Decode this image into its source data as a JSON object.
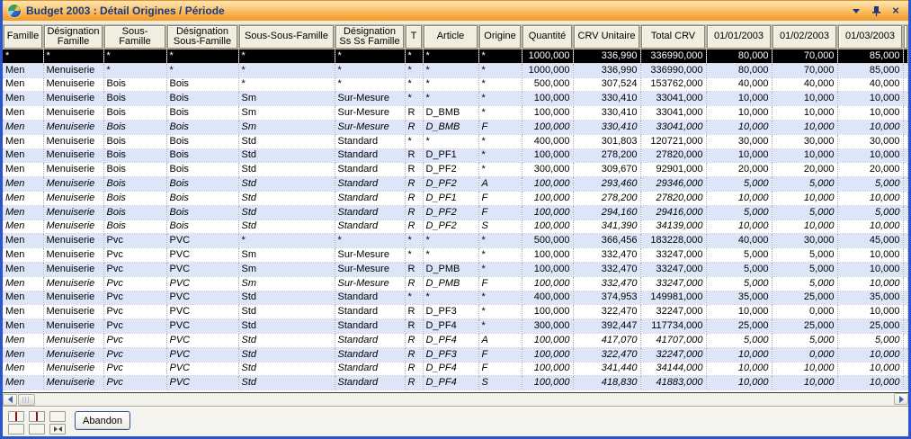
{
  "window": {
    "title": "Budget 2003 : Détail Origines / Période",
    "icon": "pie-chart-icon",
    "controls": [
      "menu-chevron-icon",
      "pin-icon",
      "close-icon"
    ]
  },
  "colors": {
    "titlebar_gradient_top": "#FEE6B9",
    "titlebar_gradient_bottom": "#F09A2D",
    "title_text": "#1A3A80",
    "window_border": "#2A55CF",
    "row_alternate": "#DCE6F8",
    "row_total_bg": "#000000",
    "row_total_fg": "#FFFFFF",
    "header_cell_bg": "#F1EDDF",
    "red_icon": "#E02818"
  },
  "table": {
    "columns": [
      {
        "key": "famille",
        "label": "Famille",
        "width": 45,
        "align": "left"
      },
      {
        "key": "designation_famille",
        "label": "Désignation Famille",
        "width": 67,
        "align": "left"
      },
      {
        "key": "sous_famille",
        "label": "Sous-Famille",
        "width": 70,
        "align": "left"
      },
      {
        "key": "designation_sous_famille",
        "label": "Désignation Sous-Famille",
        "width": 80,
        "align": "left"
      },
      {
        "key": "sous_sous_famille",
        "label": "Sous-Sous-Famille",
        "width": 107,
        "align": "left"
      },
      {
        "key": "designation_ss_ss_famille",
        "label": "Désignation Ss Ss Famille",
        "width": 78,
        "align": "left"
      },
      {
        "key": "t",
        "label": "T",
        "width": 20,
        "align": "left"
      },
      {
        "key": "article",
        "label": "Article",
        "width": 62,
        "align": "left"
      },
      {
        "key": "origine",
        "label": "Origine",
        "width": 48,
        "align": "left"
      },
      {
        "key": "quantite",
        "label": "Quantité",
        "width": 57,
        "align": "right"
      },
      {
        "key": "crv_unitaire",
        "label": "CRV Unitaire",
        "width": 75,
        "align": "right"
      },
      {
        "key": "total_crv",
        "label": "Total CRV",
        "width": 73,
        "align": "right"
      },
      {
        "key": "m_01_01_2003",
        "label": "01/01/2003",
        "width": 73,
        "align": "right"
      },
      {
        "key": "m_01_02_2003",
        "label": "01/02/2003",
        "width": 73,
        "align": "right"
      },
      {
        "key": "m_01_03_2003",
        "label": "01/03/2003",
        "width": 73,
        "align": "right"
      }
    ],
    "rows": [
      {
        "total": true,
        "italic": false,
        "cells": [
          "*",
          "*",
          "*",
          "*",
          "*",
          "*",
          "*",
          "*",
          "*",
          "1000,000",
          "336,990",
          "336990,000",
          "80,000",
          "70,000",
          "85,000"
        ]
      },
      {
        "total": false,
        "italic": false,
        "cells": [
          "Men",
          "Menuiserie",
          "*",
          "*",
          "*",
          "*",
          "*",
          "*",
          "*",
          "1000,000",
          "336,990",
          "336990,000",
          "80,000",
          "70,000",
          "85,000"
        ]
      },
      {
        "total": false,
        "italic": false,
        "cells": [
          "Men",
          "Menuiserie",
          "Bois",
          "Bois",
          "*",
          "*",
          "*",
          "*",
          "*",
          "500,000",
          "307,524",
          "153762,000",
          "40,000",
          "40,000",
          "40,000"
        ]
      },
      {
        "total": false,
        "italic": false,
        "cells": [
          "Men",
          "Menuiserie",
          "Bois",
          "Bois",
          "Sm",
          "Sur-Mesure",
          "*",
          "*",
          "*",
          "100,000",
          "330,410",
          "33041,000",
          "10,000",
          "10,000",
          "10,000"
        ]
      },
      {
        "total": false,
        "italic": false,
        "cells": [
          "Men",
          "Menuiserie",
          "Bois",
          "Bois",
          "Sm",
          "Sur-Mesure",
          "R",
          "D_BMB",
          "*",
          "100,000",
          "330,410",
          "33041,000",
          "10,000",
          "10,000",
          "10,000"
        ]
      },
      {
        "total": false,
        "italic": true,
        "cells": [
          "Men",
          "Menuiserie",
          "Bois",
          "Bois",
          "Sm",
          "Sur-Mesure",
          "R",
          "D_BMB",
          "F",
          "100,000",
          "330,410",
          "33041,000",
          "10,000",
          "10,000",
          "10,000"
        ]
      },
      {
        "total": false,
        "italic": false,
        "cells": [
          "Men",
          "Menuiserie",
          "Bois",
          "Bois",
          "Std",
          "Standard",
          "*",
          "*",
          "*",
          "400,000",
          "301,803",
          "120721,000",
          "30,000",
          "30,000",
          "30,000"
        ]
      },
      {
        "total": false,
        "italic": false,
        "cells": [
          "Men",
          "Menuiserie",
          "Bois",
          "Bois",
          "Std",
          "Standard",
          "R",
          "D_PF1",
          "*",
          "100,000",
          "278,200",
          "27820,000",
          "10,000",
          "10,000",
          "10,000"
        ]
      },
      {
        "total": false,
        "italic": false,
        "cells": [
          "Men",
          "Menuiserie",
          "Bois",
          "Bois",
          "Std",
          "Standard",
          "R",
          "D_PF2",
          "*",
          "300,000",
          "309,670",
          "92901,000",
          "20,000",
          "20,000",
          "20,000"
        ]
      },
      {
        "total": false,
        "italic": true,
        "cells": [
          "Men",
          "Menuiserie",
          "Bois",
          "Bois",
          "Std",
          "Standard",
          "R",
          "D_PF2",
          "A",
          "100,000",
          "293,460",
          "29346,000",
          "5,000",
          "5,000",
          "5,000"
        ]
      },
      {
        "total": false,
        "italic": true,
        "cells": [
          "Men",
          "Menuiserie",
          "Bois",
          "Bois",
          "Std",
          "Standard",
          "R",
          "D_PF1",
          "F",
          "100,000",
          "278,200",
          "27820,000",
          "10,000",
          "10,000",
          "10,000"
        ]
      },
      {
        "total": false,
        "italic": true,
        "cells": [
          "Men",
          "Menuiserie",
          "Bois",
          "Bois",
          "Std",
          "Standard",
          "R",
          "D_PF2",
          "F",
          "100,000",
          "294,160",
          "29416,000",
          "5,000",
          "5,000",
          "5,000"
        ]
      },
      {
        "total": false,
        "italic": true,
        "cells": [
          "Men",
          "Menuiserie",
          "Bois",
          "Bois",
          "Std",
          "Standard",
          "R",
          "D_PF2",
          "S",
          "100,000",
          "341,390",
          "34139,000",
          "10,000",
          "10,000",
          "10,000"
        ]
      },
      {
        "total": false,
        "italic": false,
        "cells": [
          "Men",
          "Menuiserie",
          "Pvc",
          "PVC",
          "*",
          "*",
          "*",
          "*",
          "*",
          "500,000",
          "366,456",
          "183228,000",
          "40,000",
          "30,000",
          "45,000"
        ]
      },
      {
        "total": false,
        "italic": false,
        "cells": [
          "Men",
          "Menuiserie",
          "Pvc",
          "PVC",
          "Sm",
          "Sur-Mesure",
          "*",
          "*",
          "*",
          "100,000",
          "332,470",
          "33247,000",
          "5,000",
          "5,000",
          "10,000"
        ]
      },
      {
        "total": false,
        "italic": false,
        "cells": [
          "Men",
          "Menuiserie",
          "Pvc",
          "PVC",
          "Sm",
          "Sur-Mesure",
          "R",
          "D_PMB",
          "*",
          "100,000",
          "332,470",
          "33247,000",
          "5,000",
          "5,000",
          "10,000"
        ]
      },
      {
        "total": false,
        "italic": true,
        "cells": [
          "Men",
          "Menuiserie",
          "Pvc",
          "PVC",
          "Sm",
          "Sur-Mesure",
          "R",
          "D_PMB",
          "F",
          "100,000",
          "332,470",
          "33247,000",
          "5,000",
          "5,000",
          "10,000"
        ]
      },
      {
        "total": false,
        "italic": false,
        "cells": [
          "Men",
          "Menuiserie",
          "Pvc",
          "PVC",
          "Std",
          "Standard",
          "*",
          "*",
          "*",
          "400,000",
          "374,953",
          "149981,000",
          "35,000",
          "25,000",
          "35,000"
        ]
      },
      {
        "total": false,
        "italic": false,
        "cells": [
          "Men",
          "Menuiserie",
          "Pvc",
          "PVC",
          "Std",
          "Standard",
          "R",
          "D_PF3",
          "*",
          "100,000",
          "322,470",
          "32247,000",
          "10,000",
          "0,000",
          "10,000"
        ]
      },
      {
        "total": false,
        "italic": false,
        "cells": [
          "Men",
          "Menuiserie",
          "Pvc",
          "PVC",
          "Std",
          "Standard",
          "R",
          "D_PF4",
          "*",
          "300,000",
          "392,447",
          "117734,000",
          "25,000",
          "25,000",
          "25,000"
        ]
      },
      {
        "total": false,
        "italic": true,
        "cells": [
          "Men",
          "Menuiserie",
          "Pvc",
          "PVC",
          "Std",
          "Standard",
          "R",
          "D_PF4",
          "A",
          "100,000",
          "417,070",
          "41707,000",
          "5,000",
          "5,000",
          "5,000"
        ]
      },
      {
        "total": false,
        "italic": true,
        "cells": [
          "Men",
          "Menuiserie",
          "Pvc",
          "PVC",
          "Std",
          "Standard",
          "R",
          "D_PF3",
          "F",
          "100,000",
          "322,470",
          "32247,000",
          "10,000",
          "0,000",
          "10,000"
        ]
      },
      {
        "total": false,
        "italic": true,
        "cells": [
          "Men",
          "Menuiserie",
          "Pvc",
          "PVC",
          "Std",
          "Standard",
          "R",
          "D_PF4",
          "F",
          "100,000",
          "341,440",
          "34144,000",
          "10,000",
          "10,000",
          "10,000"
        ]
      },
      {
        "total": false,
        "italic": true,
        "cells": [
          "Men",
          "Menuiserie",
          "Pvc",
          "PVC",
          "Std",
          "Standard",
          "R",
          "D_PF4",
          "S",
          "100,000",
          "418,830",
          "41883,000",
          "10,000",
          "10,000",
          "10,000"
        ]
      }
    ]
  },
  "scrollbar": {
    "left_icon": "scroll-left-arrow-icon",
    "right_icon": "scroll-right-arrow-icon",
    "thumb": "scrollbar-thumb"
  },
  "footer": {
    "abandon_label": "Abandon",
    "nav_buttons": [
      {
        "button": "red-bar-button",
        "icon": "red-bar-icon"
      },
      {
        "button": "red-bar-split-button",
        "icon": "red-bar-split-icon"
      },
      {
        "button": "blank-button",
        "icon": "blank-icon"
      },
      {
        "button": "up-arrow-button",
        "icon": "black-up-triangle-icon"
      },
      {
        "button": "down-arrow-button",
        "icon": "red-down-triangle-icon"
      },
      {
        "button": "collapse-button",
        "icon": "opposing-triangles-icon"
      }
    ]
  }
}
